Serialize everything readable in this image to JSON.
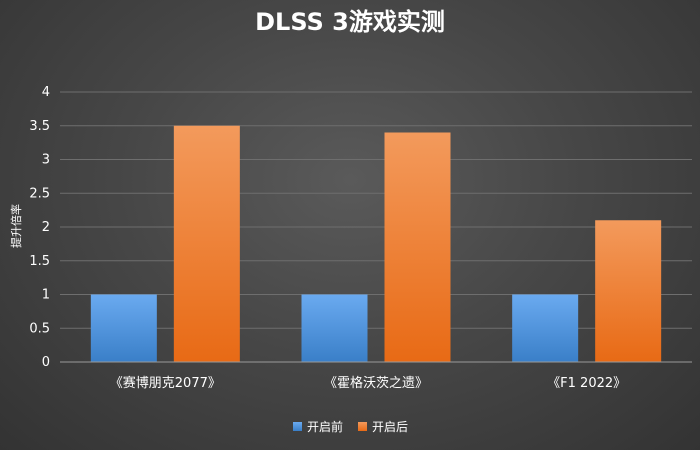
{
  "chart_data": {
    "type": "bar",
    "title": "DLSS 3游戏实测",
    "ylabel": "提升倍率",
    "xlabel": "",
    "categories": [
      "《赛博朋克2077》",
      "《霍格沃茨之遗》",
      "《F1 2022》"
    ],
    "series": [
      {
        "name": "开启前",
        "values": [
          1,
          1,
          1
        ],
        "color": "#4a90d9"
      },
      {
        "name": "开启后",
        "values": [
          3.5,
          3.4,
          2.1
        ],
        "color": "#ed7d31"
      }
    ],
    "ylim": [
      0,
      4
    ],
    "yticks": [
      "0",
      "0.5",
      "1",
      "1.5",
      "2",
      "2.5",
      "3",
      "3.5",
      "4"
    ],
    "grid": true,
    "legend_position": "bottom"
  }
}
